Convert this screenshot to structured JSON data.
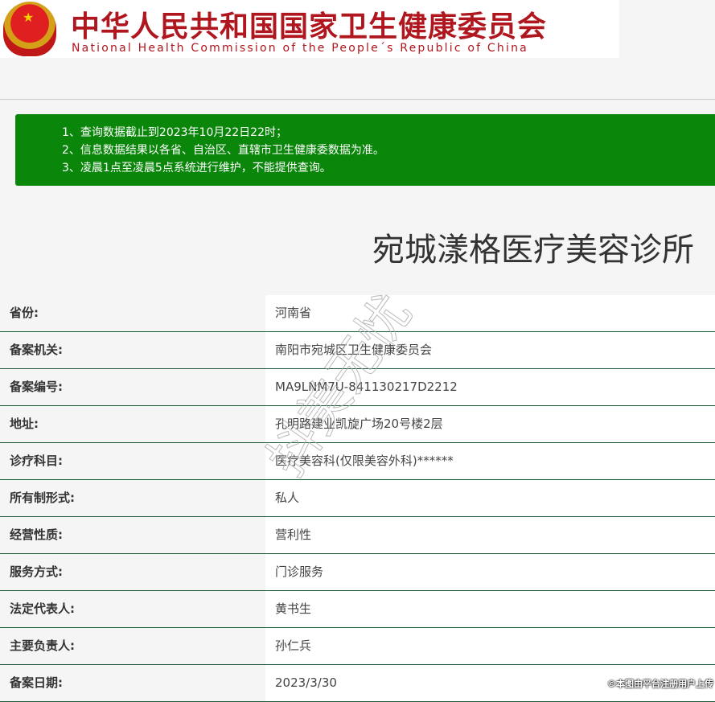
{
  "header": {
    "cn_title": "中华人民共和国国家卫生健康委员会",
    "en_title": "National Health Commission of the People´s Republic of China",
    "emblem_icon": "national-emblem-icon"
  },
  "notice": {
    "lines": [
      "1、查询数据截止到2023年10月22日22时；",
      "2、信息数据结果以各省、自治区、直辖市卫生健康委数据为准。",
      "3、凌晨1点至凌晨5点系统进行维护，不能提供查询。"
    ],
    "color": "#0a870a"
  },
  "title": "宛城漾格医疗美容诊所",
  "rows": [
    {
      "label": "省份:",
      "value": "河南省"
    },
    {
      "label": "备案机关:",
      "value": "南阳市宛城区卫生健康委员会"
    },
    {
      "label": "备案编号:",
      "value": "MA9LNM7U-841130217D2212"
    },
    {
      "label": "地址:",
      "value": "孔明路建业凯旋广场20号楼2层"
    },
    {
      "label": "诊疗科目:",
      "value": "医疗美容科(仅限美容外科)******"
    },
    {
      "label": "所有制形式:",
      "value": "私人"
    },
    {
      "label": "经营性质:",
      "value": "营利性"
    },
    {
      "label": "服务方式:",
      "value": "门诊服务"
    },
    {
      "label": "法定代表人:",
      "value": "黄书生"
    },
    {
      "label": "主要负责人:",
      "value": "孙仁兵"
    },
    {
      "label": "备案日期:",
      "value": "2023/3/30"
    }
  ],
  "watermark": "抖美无忧",
  "footer": "©本图由平台注册用户上传"
}
